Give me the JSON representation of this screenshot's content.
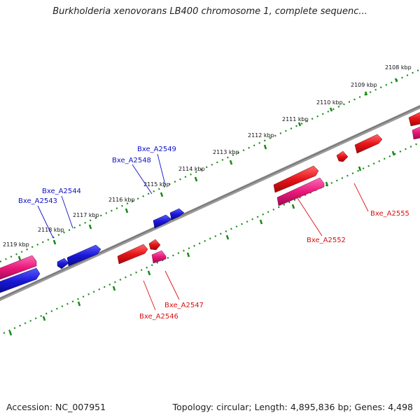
{
  "title": "Burkholderia xenovorans LB400 chromosome 1, complete sequenc...",
  "footer": {
    "accession": "Accession: NC_007951",
    "summary": "Topology: circular; Length: 4,895,836 bp; Genes: 4,498"
  },
  "colors": {
    "forward_cds": "#e8141a",
    "reverse_cds": "#1a18d8",
    "rna_pink": "#e8187a",
    "tick_green": "#1a8a1a",
    "backbone": "#808080",
    "label_blue": "#1010c8",
    "label_red": "#d81010"
  },
  "kbp_ticks": [
    "2108 kbp",
    "2109 kbp",
    "2110 kbp",
    "2111 kbp",
    "2112 kbp",
    "2113 kbp",
    "2114 kbp",
    "2115 kbp",
    "2116 kbp",
    "2117 kbp",
    "2118 kbp",
    "2119 kbp"
  ],
  "gene_labels": {
    "blue": [
      "Bxe_A2549",
      "Bxe_A2548",
      "Bxe_A2544",
      "Bxe_A2543"
    ],
    "red": [
      "Bxe_A2555",
      "Bxe_A2552",
      "Bxe_A2547",
      "Bxe_A2546"
    ]
  }
}
